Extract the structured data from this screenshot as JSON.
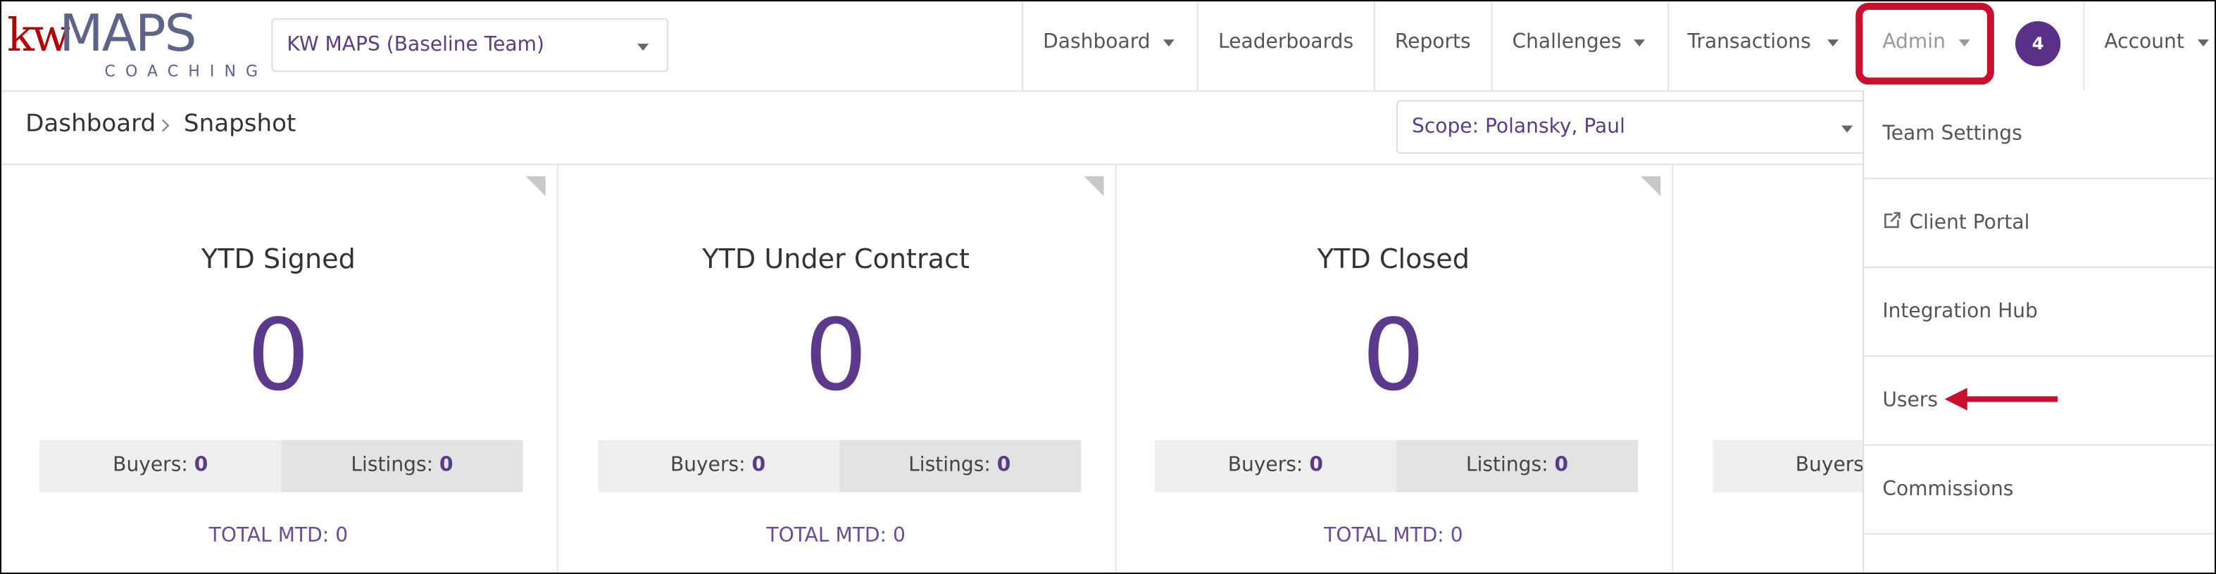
{
  "header": {
    "logo": {
      "kw": "kw",
      "maps": "MAPS",
      "coaching": "COACHING"
    },
    "team_select": "KW MAPS (Baseline Team)",
    "nav": [
      "Dashboard",
      "Leaderboards",
      "Reports",
      "Challenges",
      "Transactions",
      "Admin"
    ],
    "badge": 4,
    "account": "Account"
  },
  "breadcrumb": [
    "Dashboard",
    "Snapshot"
  ],
  "scope": "Scope: Polansky, Paul",
  "cards": [
    {
      "title": "YTD Signed",
      "value": 0,
      "buyers_label": "Buyers:",
      "buyers": 0,
      "listings_label": "Listings:",
      "listings": 0,
      "mtd_label": "TOTAL MTD:",
      "mtd": 0
    },
    {
      "title": "YTD Under Contract",
      "value": 0,
      "buyers_label": "Buyers:",
      "buyers": 0,
      "listings_label": "Listings:",
      "listings": 0,
      "mtd_label": "TOTAL MTD:",
      "mtd": 0
    },
    {
      "title": "YTD Closed",
      "value": 0,
      "buyers_label": "Buyers:",
      "buyers": 0,
      "listings_label": "Listings:",
      "listings": 0,
      "mtd_label": "TOTAL MTD:",
      "mtd": 0
    },
    {
      "buyers_label": "Buyers:"
    }
  ],
  "admin_menu": [
    "Team Settings",
    "Client Portal",
    "Integration Hub",
    "Users",
    "Commissions"
  ]
}
